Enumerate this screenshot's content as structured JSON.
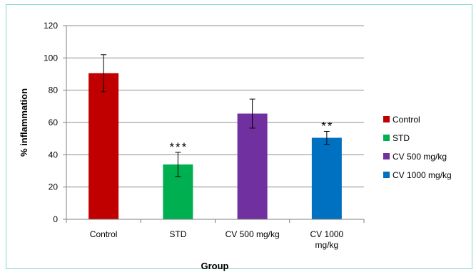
{
  "chart_data": {
    "type": "bar",
    "categories": [
      "Control",
      "STD",
      "CV 500 mg/kg",
      "CV 1000 mg/kg"
    ],
    "category_label_lines": [
      [
        "Control"
      ],
      [
        "STD"
      ],
      [
        "CV 500 mg/kg"
      ],
      [
        "CV 1000",
        "mg/kg"
      ]
    ],
    "values": [
      90.5,
      34,
      65.5,
      50.5
    ],
    "error": [
      11.5,
      7.5,
      9.0,
      4.0
    ],
    "significance": [
      "",
      "***",
      "",
      "**"
    ],
    "colors": [
      "#c00000",
      "#00b050",
      "#7030a0",
      "#0070c0"
    ],
    "legend": [
      "Control",
      "STD",
      "CV 500 mg/kg",
      "CV 1000 mg/kg"
    ],
    "legend_placement": "right",
    "xlabel": "Group",
    "ylabel": "% inflammation",
    "ylim": [
      0,
      120
    ],
    "yticks": [
      0,
      20,
      40,
      60,
      80,
      100,
      120
    ],
    "grid": true
  }
}
